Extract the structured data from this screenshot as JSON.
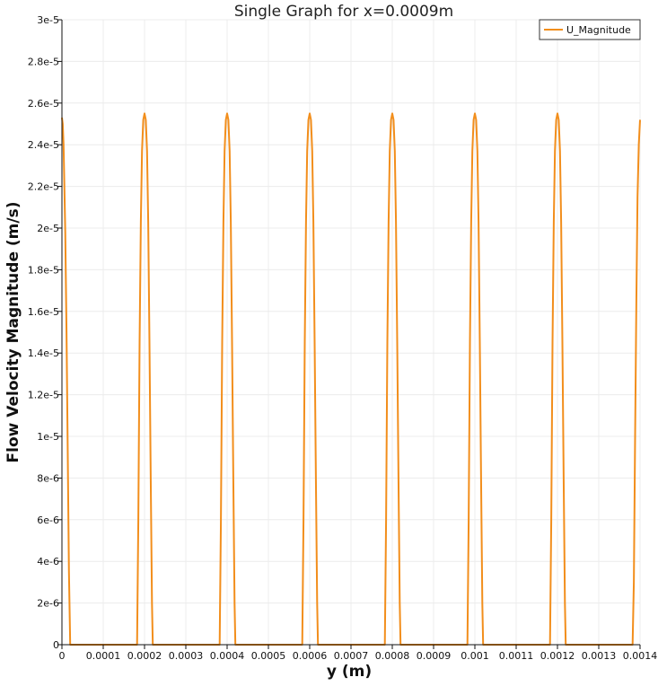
{
  "chart_data": {
    "type": "line",
    "title": "Single Graph for x=0.0009m",
    "xlabel": "y (m)",
    "ylabel": "Flow Velocity Magnitude (m/s)",
    "xlim": [
      0,
      0.0014
    ],
    "ylim": [
      0,
      3e-05
    ],
    "x_ticks": [
      "0",
      "0.0001",
      "0.0002",
      "0.0003",
      "0.0004",
      "0.0005",
      "0.0006",
      "0.0007",
      "0.0008",
      "0.0009",
      "0.001",
      "0.0011",
      "0.0012",
      "0.0013",
      "0.0014"
    ],
    "y_ticks": [
      "0",
      "2e-6",
      "4e-6",
      "6e-6",
      "8e-6",
      "1e-5",
      "1.2e-5",
      "1.4e-5",
      "1.6e-5",
      "1.8e-5",
      "2e-5",
      "2.2e-5",
      "2.4e-5",
      "2.6e-5",
      "2.8e-5",
      "3e-5"
    ],
    "grid": true,
    "legend_position": "top-right",
    "series": [
      {
        "name": "U_Magnitude",
        "color": "#f28e1c",
        "x": [
          0,
          2e-06,
          4e-06,
          8e-06,
          1.1e-05,
          1.4e-05,
          1.7e-05,
          2e-05,
          0.000182,
          0.000185,
          0.000188,
          0.000191,
          0.000194,
          0.000197,
          0.0002,
          0.000203,
          0.000206,
          0.000209,
          0.000212,
          0.000215,
          0.000218,
          0.00022,
          0.000382,
          0.000385,
          0.000388,
          0.000391,
          0.000394,
          0.000397,
          0.0004,
          0.000403,
          0.000406,
          0.000409,
          0.000412,
          0.000415,
          0.000418,
          0.00042,
          0.000582,
          0.000585,
          0.000588,
          0.000591,
          0.000594,
          0.000597,
          0.0006,
          0.000603,
          0.000606,
          0.000609,
          0.000612,
          0.000615,
          0.000618,
          0.00062,
          0.000782,
          0.000785,
          0.000788,
          0.000791,
          0.000794,
          0.000797,
          0.0008,
          0.000803,
          0.000806,
          0.000809,
          0.000812,
          0.000815,
          0.000818,
          0.00082,
          0.000982,
          0.000985,
          0.000988,
          0.000991,
          0.000994,
          0.000997,
          0.001,
          0.001003,
          0.001006,
          0.001009,
          0.001012,
          0.001015,
          0.001018,
          0.00102,
          0.001182,
          0.001185,
          0.001188,
          0.001191,
          0.001194,
          0.001197,
          0.0012,
          0.001203,
          0.001206,
          0.001209,
          0.001212,
          0.001215,
          0.001218,
          0.00122,
          0.001382,
          0.001385,
          0.001388,
          0.001391,
          0.001394,
          0.001397,
          0.0014
        ],
        "y": [
          2.53e-05,
          2.5e-05,
          2.4e-05,
          1.98e-05,
          1.5e-05,
          9.5e-06,
          3.5e-06,
          0,
          0,
          6e-06,
          1.45e-05,
          2.03e-05,
          2.37e-05,
          2.52e-05,
          2.55e-05,
          2.52e-05,
          2.37e-05,
          2.03e-05,
          1.45e-05,
          8e-06,
          2e-06,
          0,
          0,
          6e-06,
          1.45e-05,
          2.03e-05,
          2.37e-05,
          2.52e-05,
          2.55e-05,
          2.52e-05,
          2.37e-05,
          2.03e-05,
          1.45e-05,
          8e-06,
          2e-06,
          0,
          0,
          6e-06,
          1.45e-05,
          2.03e-05,
          2.37e-05,
          2.52e-05,
          2.55e-05,
          2.52e-05,
          2.37e-05,
          2.03e-05,
          1.45e-05,
          8e-06,
          2e-06,
          0,
          0,
          6e-06,
          1.45e-05,
          2.03e-05,
          2.37e-05,
          2.52e-05,
          2.55e-05,
          2.52e-05,
          2.37e-05,
          2.03e-05,
          1.45e-05,
          8e-06,
          2e-06,
          0,
          0,
          6e-06,
          1.45e-05,
          2.03e-05,
          2.37e-05,
          2.52e-05,
          2.55e-05,
          2.52e-05,
          2.37e-05,
          2.03e-05,
          1.45e-05,
          8e-06,
          2e-06,
          0,
          0,
          6e-06,
          1.45e-05,
          2.03e-05,
          2.37e-05,
          2.52e-05,
          2.55e-05,
          2.52e-05,
          2.37e-05,
          2.03e-05,
          1.45e-05,
          8e-06,
          2e-06,
          0,
          0,
          3e-06,
          1e-05,
          1.65e-05,
          2.15e-05,
          2.4e-05,
          2.52e-05
        ]
      }
    ]
  }
}
